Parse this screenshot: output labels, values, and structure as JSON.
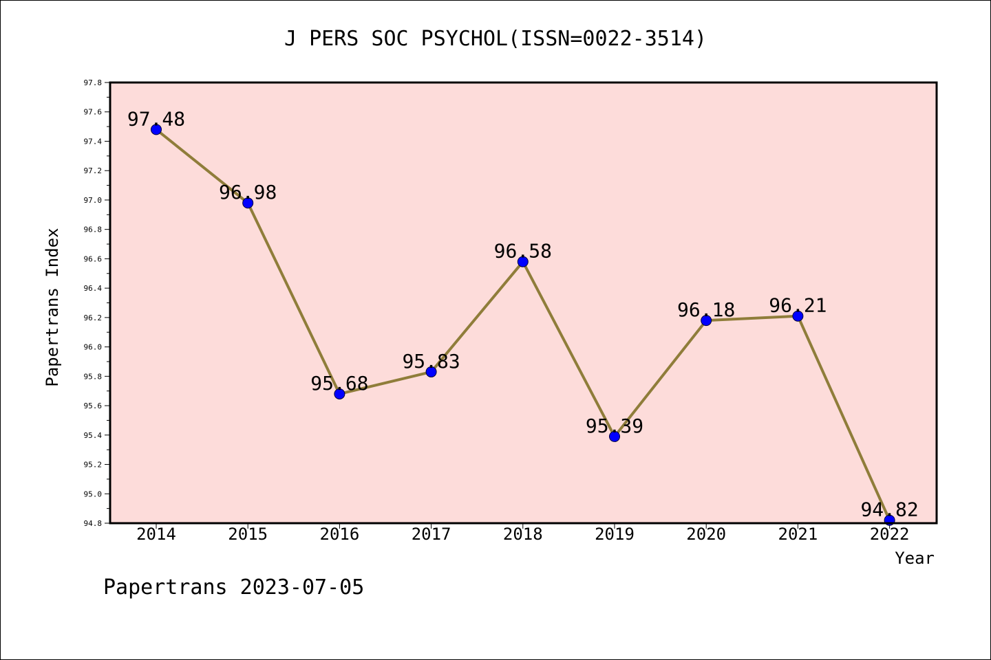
{
  "chart_data": {
    "type": "line",
    "title": "J PERS SOC PSYCHOL(ISSN=0022-3514)",
    "xlabel": "Year",
    "ylabel": "Papertrans Index",
    "categories": [
      "2014",
      "2015",
      "2016",
      "2017",
      "2018",
      "2019",
      "2020",
      "2021",
      "2022"
    ],
    "values": [
      97.48,
      96.98,
      95.68,
      95.83,
      96.58,
      95.39,
      96.18,
      96.21,
      94.82
    ],
    "data_labels": [
      "97.48",
      "96.98",
      "95.68",
      "95.83",
      "96.58",
      "95.39",
      "96.18",
      "96.21",
      "94.82"
    ],
    "ylim": [
      94.8,
      97.8
    ],
    "yticks": [
      "94.8",
      "95.0",
      "95.2",
      "95.4",
      "95.6",
      "95.8",
      "96.0",
      "96.2",
      "96.4",
      "96.6",
      "96.8",
      "97.0",
      "97.2",
      "97.4",
      "97.6",
      "97.8"
    ],
    "grid": false,
    "colors": {
      "plot_background": "#fddcda",
      "line": "#8f7d3a",
      "marker": "#0000ff"
    }
  },
  "footer": "Papertrans 2023-07-05"
}
